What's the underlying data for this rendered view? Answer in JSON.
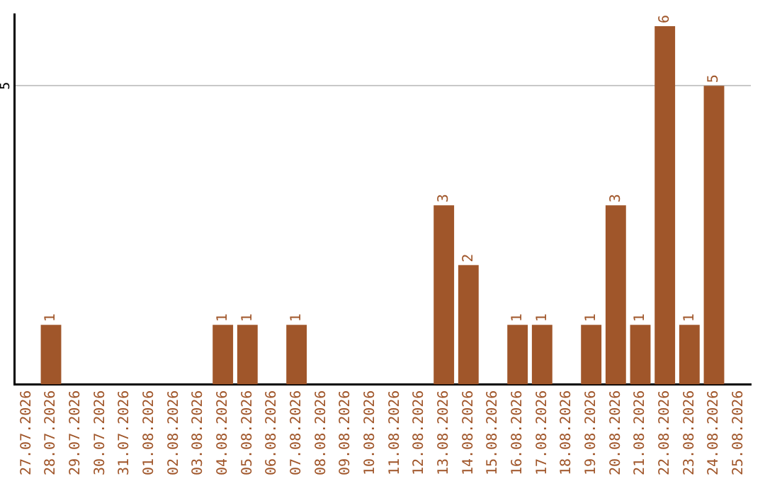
{
  "chart_data": {
    "type": "bar",
    "categories": [
      "27.07.2026",
      "28.07.2026",
      "29.07.2026",
      "30.07.2026",
      "31.07.2026",
      "01.08.2026",
      "02.08.2026",
      "03.08.2026",
      "04.08.2026",
      "05.08.2026",
      "06.08.2026",
      "07.08.2026",
      "08.08.2026",
      "09.08.2026",
      "10.08.2026",
      "11.08.2026",
      "12.08.2026",
      "13.08.2026",
      "14.08.2026",
      "15.08.2026",
      "16.08.2026",
      "17.08.2026",
      "18.08.2026",
      "19.08.2026",
      "20.08.2026",
      "21.08.2026",
      "22.08.2026",
      "23.08.2026",
      "24.08.2026",
      "25.08.2026"
    ],
    "values": [
      0,
      1,
      0,
      0,
      0,
      0,
      0,
      0,
      1,
      1,
      0,
      1,
      0,
      0,
      0,
      0,
      0,
      3,
      2,
      0,
      1,
      1,
      0,
      1,
      3,
      1,
      6,
      1,
      5,
      0
    ],
    "value_labels": [
      null,
      "1",
      null,
      null,
      null,
      null,
      null,
      null,
      "1",
      "1",
      null,
      "1",
      null,
      null,
      null,
      null,
      null,
      "3",
      "2",
      null,
      "1",
      "1",
      null,
      "1",
      "3",
      "1",
      "6",
      "1",
      "5",
      null
    ],
    "color": "#a0562a",
    "ylim": [
      0,
      6.2
    ],
    "yticks": [
      5
    ],
    "grid": "y",
    "legend": false
  }
}
